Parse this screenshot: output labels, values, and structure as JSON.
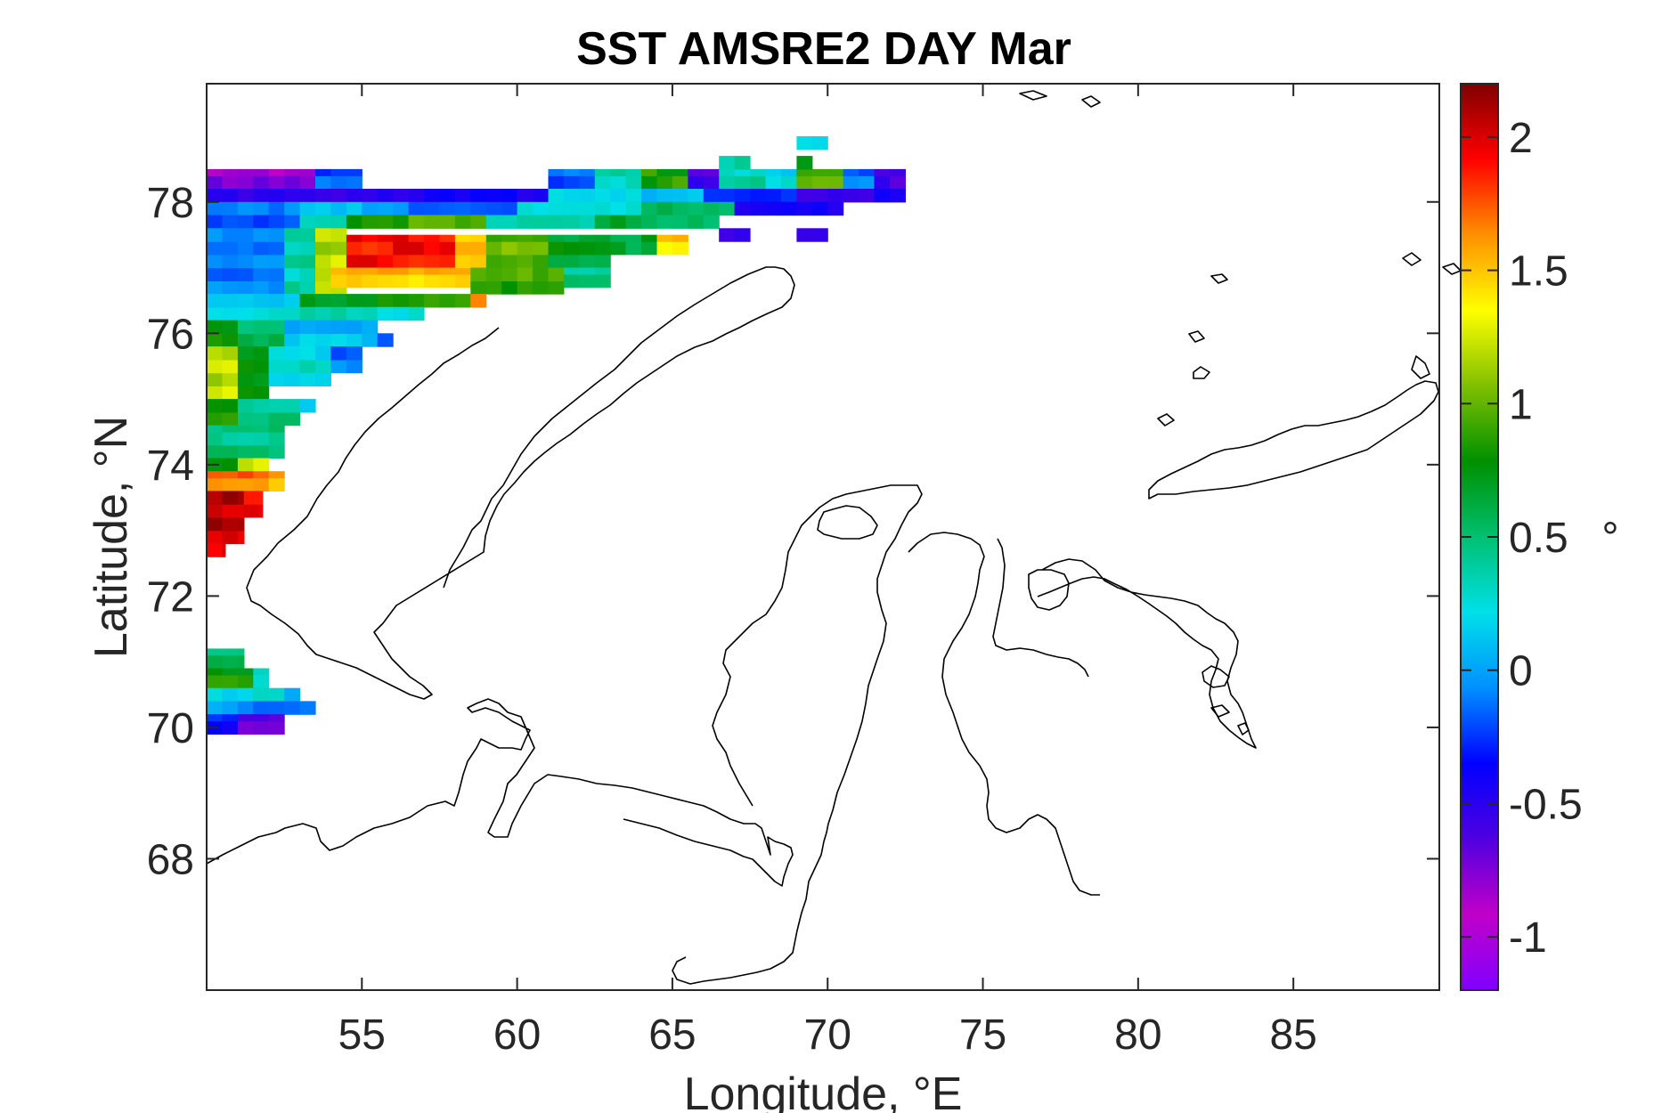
{
  "chart_data": {
    "type": "heatmap",
    "title": "SST AMSRE2 DAY Mar",
    "xlabel": "Longitude, °E",
    "ylabel": "Latitude, °N",
    "xlim": [
      50.0,
      89.7
    ],
    "ylim": [
      66.0,
      79.8
    ],
    "xticks": [
      55,
      60,
      65,
      70,
      75,
      80,
      85
    ],
    "xtick_labels": [
      "55",
      "60",
      "65",
      "70",
      "75",
      "80",
      "85"
    ],
    "yticks": [
      68,
      70,
      72,
      74,
      76,
      78
    ],
    "ytick_labels": [
      "68",
      "70",
      "72",
      "74",
      "76",
      "78"
    ],
    "colorbar": {
      "label": "°",
      "range": [
        -1.2,
        2.2
      ],
      "ticks": [
        -1,
        -0.5,
        0,
        0.5,
        1,
        1.5,
        2
      ],
      "tick_labels": [
        "-1",
        "-0.5",
        "0",
        "0.5",
        "1",
        "1.5",
        "2"
      ],
      "colormap": "jet-like",
      "stops": [
        "#8000ff",
        "#c000c8",
        "#5000e0",
        "#0000ff",
        "#0090ff",
        "#00e0e8",
        "#00c070",
        "#009000",
        "#80c000",
        "#ffff00",
        "#ff9000",
        "#ff0000",
        "#800000"
      ]
    },
    "grid": false,
    "cell_size_deg": [
      0.5,
      0.2
    ],
    "data_cells": [
      {
        "lon": [
          50.0,
          53.5
        ],
        "lat": [
          78.2,
          78.5
        ],
        "value": -0.8
      },
      {
        "lon": [
          53.5,
          55.0
        ],
        "lat": [
          78.2,
          78.5
        ],
        "value": -0.2
      },
      {
        "lon": [
          50.0,
          60.0
        ],
        "lat": [
          78.0,
          78.2
        ],
        "value": -0.45
      },
      {
        "lon": [
          60.0,
          61.5
        ],
        "lat": [
          78.0,
          78.2
        ],
        "value": -0.5
      },
      {
        "lon": [
          61.0,
          62.5
        ],
        "lat": [
          78.2,
          78.5
        ],
        "value": -0.15
      },
      {
        "lon": [
          62.5,
          64.0
        ],
        "lat": [
          78.2,
          78.5
        ],
        "value": 0.35
      },
      {
        "lon": [
          64.0,
          65.5
        ],
        "lat": [
          78.2,
          78.5
        ],
        "value": 0.85
      },
      {
        "lon": [
          65.5,
          66.5
        ],
        "lat": [
          78.2,
          78.5
        ],
        "value": -0.6
      },
      {
        "lon": [
          66.5,
          68.0
        ],
        "lat": [
          78.2,
          78.5
        ],
        "value": 0.35
      },
      {
        "lon": [
          68.0,
          69.0
        ],
        "lat": [
          78.2,
          78.5
        ],
        "value": 0.2
      },
      {
        "lon": [
          69.0,
          70.5
        ],
        "lat": [
          78.2,
          78.5
        ],
        "value": 0.95
      },
      {
        "lon": [
          70.5,
          71.5
        ],
        "lat": [
          78.2,
          78.5
        ],
        "value": -0.15
      },
      {
        "lon": [
          71.5,
          72.5
        ],
        "lat": [
          78.2,
          78.5
        ],
        "value": -0.6
      },
      {
        "lon": [
          66.5,
          67.5
        ],
        "lat": [
          78.5,
          78.7
        ],
        "value": 0.45
      },
      {
        "lon": [
          69.0,
          69.5
        ],
        "lat": [
          78.5,
          78.7
        ],
        "value": 0.7
      },
      {
        "lon": [
          69.0,
          70.0
        ],
        "lat": [
          78.8,
          79.0
        ],
        "value": 0.25
      },
      {
        "lon": [
          61.0,
          66.0
        ],
        "lat": [
          78.0,
          78.2
        ],
        "value": 0.15
      },
      {
        "lon": [
          66.0,
          69.0
        ],
        "lat": [
          78.0,
          78.2
        ],
        "value": -0.2
      },
      {
        "lon": [
          69.0,
          72.5
        ],
        "lat": [
          78.0,
          78.2
        ],
        "value": -0.5
      },
      {
        "lon": [
          50.0,
          53.0
        ],
        "lat": [
          77.8,
          78.0
        ],
        "value": -0.15
      },
      {
        "lon": [
          53.0,
          55.0
        ],
        "lat": [
          77.8,
          78.0
        ],
        "value": 0.05
      },
      {
        "lon": [
          55.0,
          60.0
        ],
        "lat": [
          77.8,
          78.0
        ],
        "value": -0.1
      },
      {
        "lon": [
          60.0,
          64.0
        ],
        "lat": [
          77.8,
          78.0
        ],
        "value": 0.3
      },
      {
        "lon": [
          64.0,
          67.0
        ],
        "lat": [
          77.8,
          78.0
        ],
        "value": 0.5
      },
      {
        "lon": [
          67.0,
          70.5
        ],
        "lat": [
          77.8,
          78.0
        ],
        "value": -0.5
      },
      {
        "lon": [
          50.0,
          53.0
        ],
        "lat": [
          77.6,
          77.8
        ],
        "value": -0.15
      },
      {
        "lon": [
          53.0,
          54.5
        ],
        "lat": [
          77.6,
          77.8
        ],
        "value": 0.4
      },
      {
        "lon": [
          54.5,
          59.0
        ],
        "lat": [
          77.6,
          77.8
        ],
        "value": 0.9
      },
      {
        "lon": [
          59.0,
          62.5
        ],
        "lat": [
          77.6,
          77.8
        ],
        "value": 0.3
      },
      {
        "lon": [
          62.5,
          66.5
        ],
        "lat": [
          77.6,
          77.8
        ],
        "value": 0.6
      },
      {
        "lon": [
          66.5,
          67.5
        ],
        "lat": [
          77.4,
          77.6
        ],
        "value": -0.6
      },
      {
        "lon": [
          69.0,
          70.0
        ],
        "lat": [
          77.4,
          77.6
        ],
        "value": -0.6
      },
      {
        "lon": [
          50.0,
          52.5
        ],
        "lat": [
          76.6,
          77.6
        ],
        "value": -0.1
      },
      {
        "lon": [
          52.5,
          53.5
        ],
        "lat": [
          76.6,
          77.6
        ],
        "value": 0.35
      },
      {
        "lon": [
          53.5,
          54.5
        ],
        "lat": [
          76.6,
          77.6
        ],
        "value": 1.2
      },
      {
        "lon": [
          54.5,
          58.0
        ],
        "lat": [
          77.0,
          77.5
        ],
        "value": 1.9
      },
      {
        "lon": [
          54.0,
          58.5
        ],
        "lat": [
          76.7,
          77.0
        ],
        "value": 1.5
      },
      {
        "lon": [
          58.0,
          59.0
        ],
        "lat": [
          77.0,
          77.5
        ],
        "value": 1.5
      },
      {
        "lon": [
          59.0,
          61.0
        ],
        "lat": [
          77.0,
          77.5
        ],
        "value": 1.0
      },
      {
        "lon": [
          61.0,
          63.0
        ],
        "lat": [
          77.0,
          77.5
        ],
        "value": 0.7
      },
      {
        "lon": [
          63.0,
          64.5
        ],
        "lat": [
          77.2,
          77.5
        ],
        "value": 0.65
      },
      {
        "lon": [
          64.5,
          65.5
        ],
        "lat": [
          77.2,
          77.5
        ],
        "value": 1.45
      },
      {
        "lon": [
          58.5,
          61.5
        ],
        "lat": [
          76.6,
          77.0
        ],
        "value": 0.9
      },
      {
        "lon": [
          61.5,
          63.0
        ],
        "lat": [
          76.7,
          77.0
        ],
        "value": 0.45
      },
      {
        "lon": [
          50.0,
          53.0
        ],
        "lat": [
          76.2,
          76.6
        ],
        "value": 0.2
      },
      {
        "lon": [
          53.0,
          57.0
        ],
        "lat": [
          76.4,
          76.6
        ],
        "value": 0.75
      },
      {
        "lon": [
          57.0,
          58.5
        ],
        "lat": [
          76.4,
          76.6
        ],
        "value": 0.85
      },
      {
        "lon": [
          58.5,
          59.0
        ],
        "lat": [
          76.4,
          76.6
        ],
        "value": 1.6
      },
      {
        "lon": [
          53.0,
          57.0
        ],
        "lat": [
          76.2,
          76.4
        ],
        "value": 0.3
      },
      {
        "lon": [
          50.0,
          51.0
        ],
        "lat": [
          75.8,
          76.2
        ],
        "value": 0.8
      },
      {
        "lon": [
          51.0,
          52.5
        ],
        "lat": [
          75.8,
          76.2
        ],
        "value": 0.55
      },
      {
        "lon": [
          52.5,
          55.5
        ],
        "lat": [
          75.8,
          76.2
        ],
        "value": 0.1
      },
      {
        "lon": [
          55.5,
          56.0
        ],
        "lat": [
          75.8,
          76.0
        ],
        "value": -0.1
      },
      {
        "lon": [
          50.0,
          51.0
        ],
        "lat": [
          75.0,
          75.8
        ],
        "value": 1.2
      },
      {
        "lon": [
          51.0,
          52.0
        ],
        "lat": [
          75.0,
          75.8
        ],
        "value": 0.75
      },
      {
        "lon": [
          52.0,
          54.0
        ],
        "lat": [
          75.2,
          75.8
        ],
        "value": 0.25
      },
      {
        "lon": [
          54.0,
          55.0
        ],
        "lat": [
          75.4,
          75.8
        ],
        "value": -0.1
      },
      {
        "lon": [
          50.0,
          51.0
        ],
        "lat": [
          74.6,
          75.0
        ],
        "value": 0.8
      },
      {
        "lon": [
          51.0,
          53.0
        ],
        "lat": [
          74.6,
          75.0
        ],
        "value": 0.45
      },
      {
        "lon": [
          53.0,
          53.5
        ],
        "lat": [
          74.8,
          75.0
        ],
        "value": 0.2
      },
      {
        "lon": [
          50.0,
          52.5
        ],
        "lat": [
          74.1,
          74.6
        ],
        "value": 0.45
      },
      {
        "lon": [
          50.0,
          51.0
        ],
        "lat": [
          73.9,
          74.1
        ],
        "value": 0.85
      },
      {
        "lon": [
          51.0,
          52.0
        ],
        "lat": [
          73.9,
          74.1
        ],
        "value": 1.3
      },
      {
        "lon": [
          50.0,
          52.0
        ],
        "lat": [
          73.6,
          73.9
        ],
        "value": 1.7
      },
      {
        "lon": [
          52.0,
          52.5
        ],
        "lat": [
          73.6,
          73.9
        ],
        "value": 1.5
      },
      {
        "lon": [
          50.0,
          51.2
        ],
        "lat": [
          72.8,
          73.6
        ],
        "value": 2.05
      },
      {
        "lon": [
          51.2,
          51.8
        ],
        "lat": [
          73.2,
          73.6
        ],
        "value": 1.9
      },
      {
        "lon": [
          50.0,
          50.6
        ],
        "lat": [
          72.6,
          72.8
        ],
        "value": 1.9
      },
      {
        "lon": [
          50.0,
          51.2
        ],
        "lat": [
          70.9,
          71.2
        ],
        "value": 0.5
      },
      {
        "lon": [
          50.0,
          51.5
        ],
        "lat": [
          70.6,
          70.9
        ],
        "value": 0.8
      },
      {
        "lon": [
          51.5,
          52.0
        ],
        "lat": [
          70.6,
          70.9
        ],
        "value": 0.3
      },
      {
        "lon": [
          50.0,
          52.5
        ],
        "lat": [
          70.4,
          70.6
        ],
        "value": 0.25
      },
      {
        "lon": [
          52.5,
          53.0
        ],
        "lat": [
          70.4,
          70.6
        ],
        "value": 0.0
      },
      {
        "lon": [
          50.0,
          53.5
        ],
        "lat": [
          70.2,
          70.4
        ],
        "value": -0.05
      },
      {
        "lon": [
          50.0,
          51.0
        ],
        "lat": [
          69.9,
          70.2
        ],
        "value": -0.3
      },
      {
        "lon": [
          51.0,
          52.5
        ],
        "lat": [
          69.9,
          70.2
        ],
        "value": -0.7
      }
    ]
  }
}
